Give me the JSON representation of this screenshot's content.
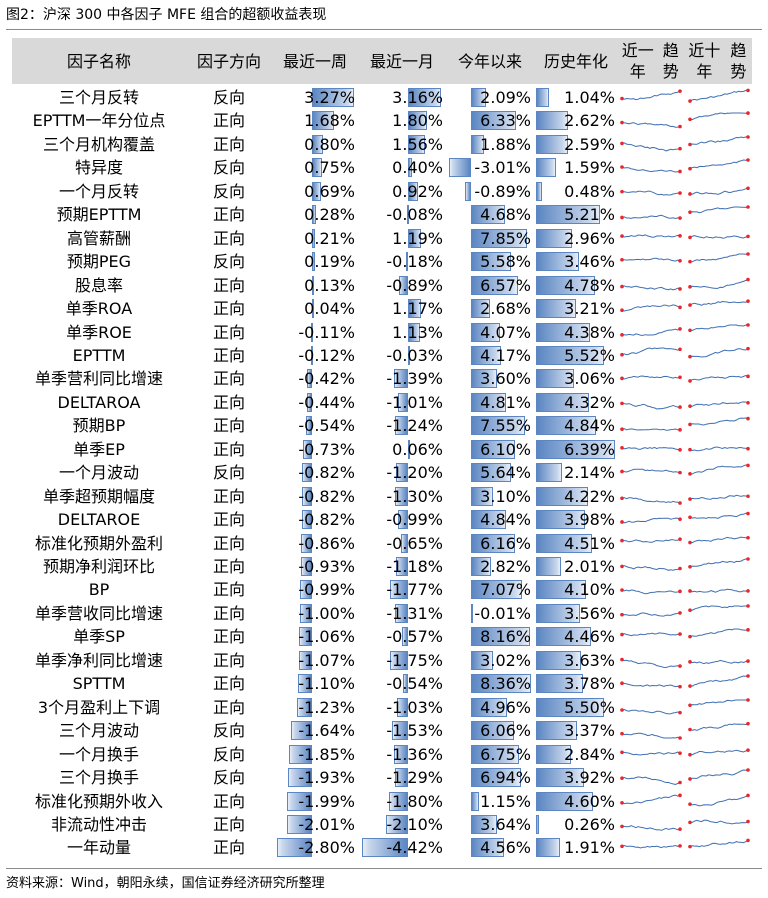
{
  "figure": {
    "title": "图2：沪深 300 中各因子 MFE 组合的超额收益表现",
    "source": "资料来源：Wind，朝阳永续，国信证券经济研究所整理"
  },
  "chart_data": {
    "type": "table",
    "columns": [
      "因子名称",
      "因子方向",
      "最近一周",
      "最近一月",
      "今年以来",
      "历史年化",
      "近一年趋势",
      "近十年趋势"
    ],
    "rows": [
      {
        "name": "三个月反转",
        "dir": "反向",
        "w": 3.27,
        "m": 3.16,
        "y": 2.09,
        "h": 1.04
      },
      {
        "name": "EPTTM一年分位点",
        "dir": "正向",
        "w": 1.68,
        "m": 1.8,
        "y": 6.33,
        "h": 2.62
      },
      {
        "name": "三个月机构覆盖",
        "dir": "正向",
        "w": 0.8,
        "m": 1.56,
        "y": 1.88,
        "h": 2.59
      },
      {
        "name": "特异度",
        "dir": "反向",
        "w": 0.75,
        "m": 0.4,
        "y": -3.01,
        "h": 1.59
      },
      {
        "name": "一个月反转",
        "dir": "反向",
        "w": 0.69,
        "m": 0.92,
        "y": -0.89,
        "h": 0.48
      },
      {
        "name": "预期EPTTM",
        "dir": "正向",
        "w": 0.28,
        "m": -0.08,
        "y": 4.68,
        "h": 5.21
      },
      {
        "name": "高管薪酬",
        "dir": "正向",
        "w": 0.21,
        "m": 1.19,
        "y": 7.85,
        "h": 2.96
      },
      {
        "name": "预期PEG",
        "dir": "反向",
        "w": 0.19,
        "m": -0.18,
        "y": 5.58,
        "h": 3.46
      },
      {
        "name": "股息率",
        "dir": "正向",
        "w": 0.13,
        "m": -0.89,
        "y": 6.57,
        "h": 4.78
      },
      {
        "name": "单季ROA",
        "dir": "正向",
        "w": 0.04,
        "m": 1.17,
        "y": 2.68,
        "h": 3.21
      },
      {
        "name": "单季ROE",
        "dir": "正向",
        "w": -0.11,
        "m": 1.13,
        "y": 4.07,
        "h": 4.38
      },
      {
        "name": "EPTTM",
        "dir": "正向",
        "w": -0.12,
        "m": -0.03,
        "y": 4.17,
        "h": 5.52
      },
      {
        "name": "单季营利同比增速",
        "dir": "正向",
        "w": -0.42,
        "m": -1.39,
        "y": 3.6,
        "h": 3.06
      },
      {
        "name": "DELTAROA",
        "dir": "正向",
        "w": -0.44,
        "m": -1.01,
        "y": 4.81,
        "h": 4.32
      },
      {
        "name": "预期BP",
        "dir": "正向",
        "w": -0.54,
        "m": -1.24,
        "y": 7.55,
        "h": 4.84
      },
      {
        "name": "单季EP",
        "dir": "正向",
        "w": -0.73,
        "m": 0.06,
        "y": 6.1,
        "h": 6.39
      },
      {
        "name": "一个月波动",
        "dir": "反向",
        "w": -0.82,
        "m": -1.2,
        "y": 5.64,
        "h": 2.14
      },
      {
        "name": "单季超预期幅度",
        "dir": "正向",
        "w": -0.82,
        "m": -1.3,
        "y": 3.1,
        "h": 4.22
      },
      {
        "name": "DELTAROE",
        "dir": "正向",
        "w": -0.82,
        "m": -0.99,
        "y": 4.84,
        "h": 3.98
      },
      {
        "name": "标准化预期外盈利",
        "dir": "正向",
        "w": -0.86,
        "m": -0.65,
        "y": 6.16,
        "h": 4.51
      },
      {
        "name": "预期净利润环比",
        "dir": "正向",
        "w": -0.93,
        "m": -1.18,
        "y": 2.82,
        "h": 2.01
      },
      {
        "name": "BP",
        "dir": "正向",
        "w": -0.99,
        "m": -1.77,
        "y": 7.07,
        "h": 4.1
      },
      {
        "name": "单季营收同比增速",
        "dir": "正向",
        "w": -1.0,
        "m": -1.31,
        "y": -0.01,
        "h": 3.56
      },
      {
        "name": "单季SP",
        "dir": "正向",
        "w": -1.06,
        "m": -0.57,
        "y": 8.16,
        "h": 4.46
      },
      {
        "name": "单季净利同比增速",
        "dir": "正向",
        "w": -1.07,
        "m": -1.75,
        "y": 3.02,
        "h": 3.63
      },
      {
        "name": "SPTTM",
        "dir": "正向",
        "w": -1.1,
        "m": -0.54,
        "y": 8.36,
        "h": 3.78
      },
      {
        "name": "3个月盈利上下调",
        "dir": "正向",
        "w": -1.23,
        "m": -1.03,
        "y": 4.96,
        "h": 5.5
      },
      {
        "name": "三个月波动",
        "dir": "反向",
        "w": -1.64,
        "m": -1.53,
        "y": 6.06,
        "h": 3.37
      },
      {
        "name": "一个月换手",
        "dir": "反向",
        "w": -1.85,
        "m": -1.36,
        "y": 6.75,
        "h": 2.84
      },
      {
        "name": "三个月换手",
        "dir": "反向",
        "w": -1.93,
        "m": -1.29,
        "y": 6.94,
        "h": 3.92
      },
      {
        "name": "标准化预期外收入",
        "dir": "正向",
        "w": -1.99,
        "m": -1.8,
        "y": 1.15,
        "h": 4.6
      },
      {
        "name": "非流动性冲击",
        "dir": "正向",
        "w": -2.01,
        "m": -2.1,
        "y": 3.64,
        "h": 0.26
      },
      {
        "name": "一年动量",
        "dir": "正向",
        "w": -2.8,
        "m": -4.42,
        "y": 4.56,
        "h": 1.91
      }
    ],
    "bar_colors": {
      "fill": "#5b86c2",
      "light": "#e8eef8"
    },
    "sparkline_colors": {
      "line": "#3e6fb3",
      "marker": "#e8262b"
    }
  }
}
